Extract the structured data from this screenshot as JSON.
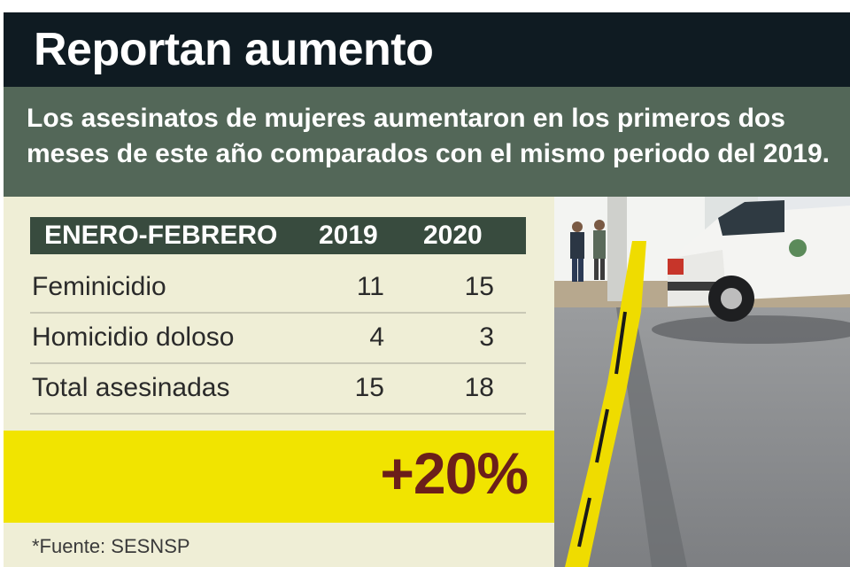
{
  "header": {
    "title": "Reportan aumento"
  },
  "subhead": {
    "text": "Los asesinatos de mujeres aumentaron en los primeros dos meses de este año comparados con el mismo periodo del 2019."
  },
  "table": {
    "columns": [
      "ENERO-FEBRERO",
      "2019",
      "2020"
    ],
    "rows": [
      {
        "label": "Feminicidio",
        "v2019": "11",
        "v2020": "15"
      },
      {
        "label": "Homicidio doloso",
        "v2019": "4",
        "v2020": "3"
      },
      {
        "label": "Total asesinadas",
        "v2019": "15",
        "v2020": "18"
      }
    ]
  },
  "highlight": {
    "value": "+20%",
    "color": "#6b1f1a",
    "background": "#f1e400"
  },
  "source": "*Fuente: SESNSP",
  "photo": {
    "description_icon": "crime-scene-photo",
    "tape_color": "#f0de00"
  },
  "chart_data": {
    "type": "table",
    "columns": [
      "ENERO-FEBRERO",
      "2019",
      "2020"
    ],
    "rows": [
      [
        "Feminicidio",
        11,
        15
      ],
      [
        "Homicidio doloso",
        4,
        3
      ],
      [
        "Total asesinadas",
        15,
        18
      ]
    ],
    "annotation": "+20%"
  }
}
